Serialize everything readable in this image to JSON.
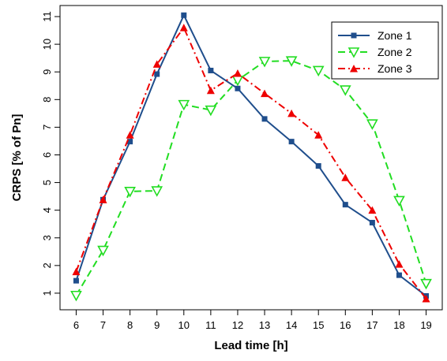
{
  "chart_data": {
    "type": "line",
    "xlabel": "Lead time [h]",
    "ylabel": "CRPS [% of Pn]",
    "x": [
      6,
      7,
      8,
      9,
      10,
      11,
      12,
      13,
      14,
      15,
      16,
      17,
      18,
      19
    ],
    "xlim": [
      5.4,
      19.6
    ],
    "ylim": [
      0.4,
      11.4
    ],
    "x_ticks": [
      6,
      7,
      8,
      9,
      10,
      11,
      12,
      13,
      14,
      15,
      16,
      17,
      18,
      19
    ],
    "y_ticks": [
      1,
      2,
      3,
      4,
      5,
      6,
      7,
      8,
      9,
      10,
      11
    ],
    "grid": false,
    "legend_position": "top-right",
    "series": [
      {
        "name": "Zone 1",
        "color": "#1f4e8c",
        "marker": "square",
        "line_style": "solid",
        "values": [
          1.45,
          4.38,
          6.48,
          8.92,
          11.05,
          9.05,
          8.4,
          7.3,
          6.48,
          5.6,
          4.2,
          3.55,
          1.65,
          0.9
        ]
      },
      {
        "name": "Zone 2",
        "color": "#22dd22",
        "marker": "triangle-down-open",
        "line_style": "dashed",
        "values": [
          0.92,
          2.55,
          4.68,
          4.7,
          7.82,
          7.62,
          8.7,
          9.38,
          9.4,
          9.05,
          8.35,
          7.12,
          4.35,
          1.35
        ]
      },
      {
        "name": "Zone 3",
        "color": "#ee0000",
        "marker": "triangle-up",
        "line_style": "dash-dot",
        "values": [
          1.78,
          4.38,
          6.72,
          9.28,
          10.6,
          8.33,
          8.95,
          8.22,
          7.5,
          6.72,
          5.18,
          4.0,
          2.05,
          0.8
        ]
      }
    ]
  }
}
